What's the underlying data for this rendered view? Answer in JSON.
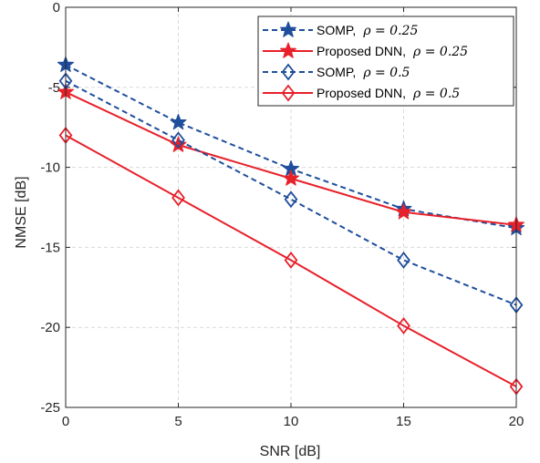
{
  "chart_data": {
    "type": "line",
    "title": "",
    "xlabel": "SNR [dB]",
    "ylabel": "NMSE [dB]",
    "x": [
      0,
      5,
      10,
      15,
      20
    ],
    "xlim": [
      0,
      20
    ],
    "ylim": [
      -25,
      0
    ],
    "xticks": [
      "0",
      "5",
      "10",
      "15",
      "20"
    ],
    "yticks": [
      "0",
      "-5",
      "-10",
      "-15",
      "-20",
      "-25"
    ],
    "grid": true,
    "legend_position": "top-right",
    "series": [
      {
        "name": "SOMP,",
        "rho_label": "ρ = 0.25",
        "values": [
          -3.6,
          -7.2,
          -10.1,
          -12.6,
          -13.8
        ],
        "color": "#1f4e9c",
        "dash": "dashed",
        "marker": "star"
      },
      {
        "name": "Proposed DNN,",
        "rho_label": "ρ = 0.25",
        "values": [
          -5.3,
          -8.6,
          -10.7,
          -12.8,
          -13.6
        ],
        "color": "#e8202a",
        "dash": "solid",
        "marker": "star"
      },
      {
        "name": "SOMP,",
        "rho_label": "ρ = 0.5",
        "values": [
          -4.6,
          -8.3,
          -12.0,
          -15.8,
          -18.6
        ],
        "color": "#1f4e9c",
        "dash": "dashed",
        "marker": "diamond"
      },
      {
        "name": "Proposed DNN,",
        "rho_label": "ρ = 0.5",
        "values": [
          -8.0,
          -11.9,
          -15.8,
          -19.9,
          -23.7
        ],
        "color": "#e8202a",
        "dash": "solid",
        "marker": "diamond"
      }
    ]
  }
}
